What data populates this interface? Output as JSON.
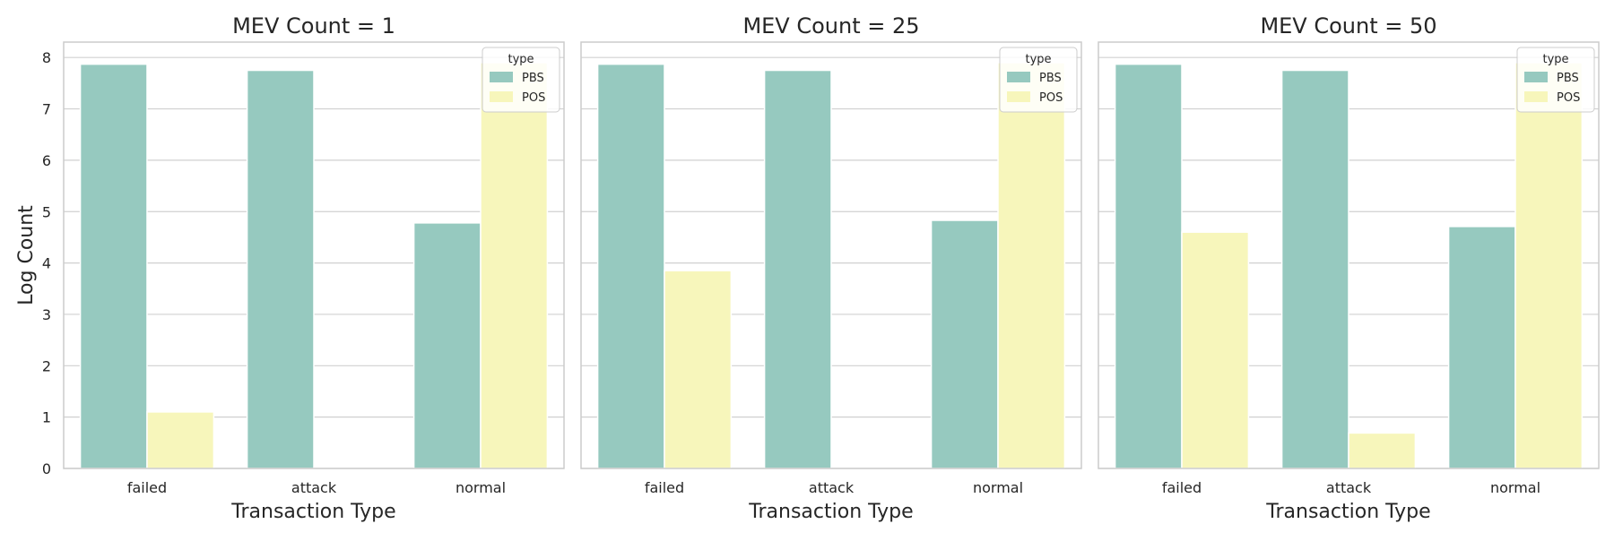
{
  "chart_data": [
    {
      "type": "bar",
      "title": "MEV Count = 1",
      "xlabel": "Transaction Type",
      "ylabel": "Log Count",
      "categories": [
        "failed",
        "attack",
        "normal"
      ],
      "ylim": [
        0,
        8.3
      ],
      "yticks": [
        0,
        1,
        2,
        3,
        4,
        5,
        6,
        7,
        8
      ],
      "grid": true,
      "legend": {
        "title": "type",
        "placement": "top-right"
      },
      "series": [
        {
          "name": "PBS",
          "values": [
            7.87,
            7.75,
            4.78
          ]
        },
        {
          "name": "POS",
          "values": [
            1.1,
            0,
            7.9
          ]
        }
      ]
    },
    {
      "type": "bar",
      "title": "MEV Count = 25",
      "xlabel": "Transaction Type",
      "ylabel": "",
      "categories": [
        "failed",
        "attack",
        "normal"
      ],
      "ylim": [
        0,
        8.3
      ],
      "yticks": [
        0,
        1,
        2,
        3,
        4,
        5,
        6,
        7,
        8
      ],
      "grid": true,
      "legend": {
        "title": "type",
        "placement": "top-right"
      },
      "series": [
        {
          "name": "PBS",
          "values": [
            7.87,
            7.75,
            4.83
          ]
        },
        {
          "name": "POS",
          "values": [
            3.85,
            0,
            7.9
          ]
        }
      ]
    },
    {
      "type": "bar",
      "title": "MEV Count = 50",
      "xlabel": "Transaction Type",
      "ylabel": "",
      "categories": [
        "failed",
        "attack",
        "normal"
      ],
      "ylim": [
        0,
        8.3
      ],
      "yticks": [
        0,
        1,
        2,
        3,
        4,
        5,
        6,
        7,
        8
      ],
      "grid": true,
      "legend": {
        "title": "type",
        "placement": "top-right"
      },
      "series": [
        {
          "name": "PBS",
          "values": [
            7.87,
            7.75,
            4.71
          ]
        },
        {
          "name": "POS",
          "values": [
            4.6,
            0.69,
            7.9
          ]
        }
      ]
    }
  ],
  "colors": {
    "PBS": "#96c9bf",
    "POS": "#f7f6bb",
    "grid": "#d0d0d0",
    "spine": "#cccccc",
    "text": "#262626"
  }
}
